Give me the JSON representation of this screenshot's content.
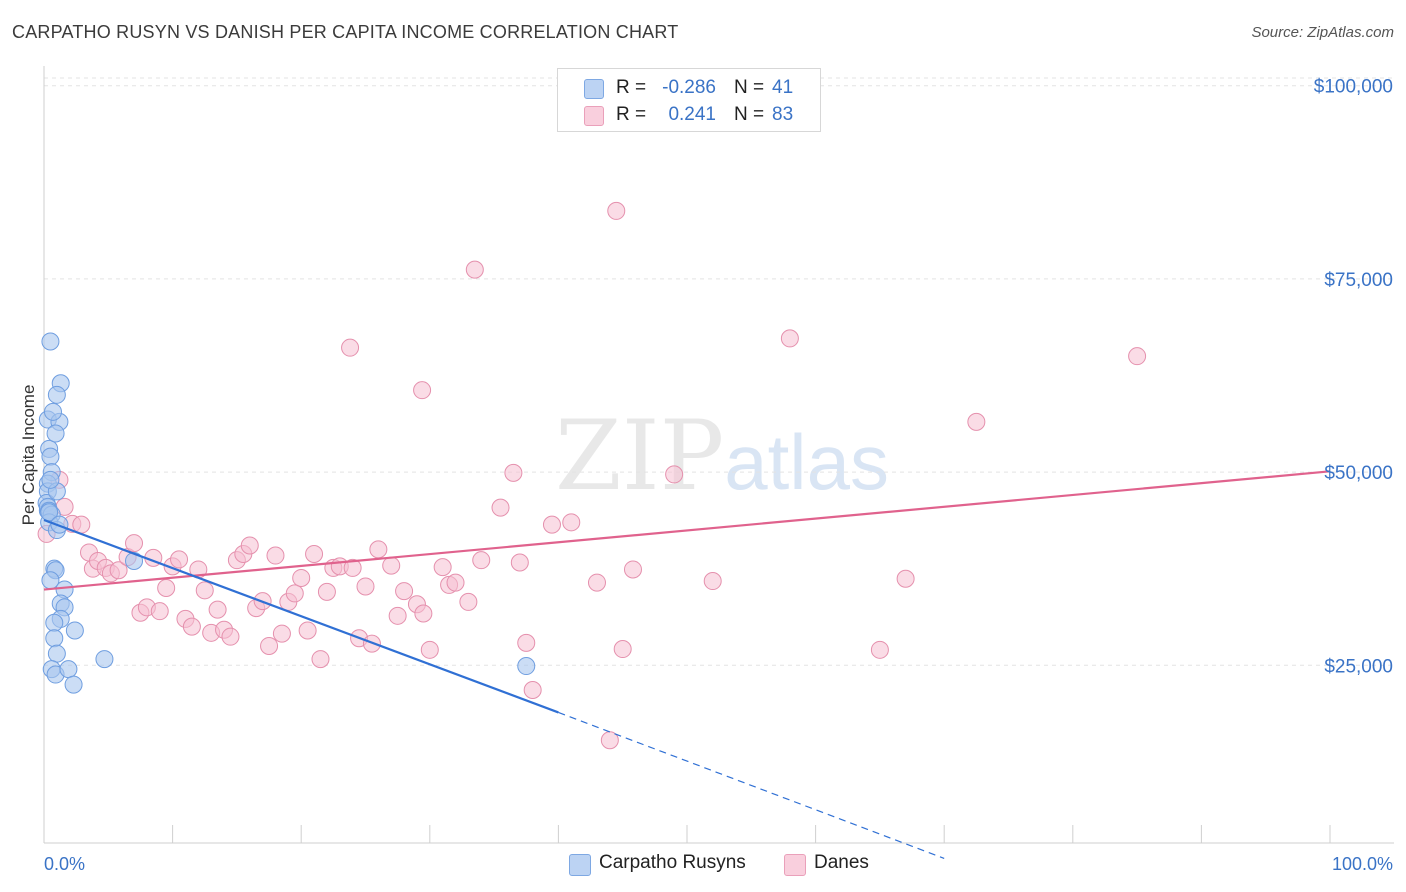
{
  "title": "CARPATHO RUSYN VS DANISH PER CAPITA INCOME CORRELATION CHART",
  "source": "Source: ZipAtlas.com",
  "watermark": {
    "main": "ZIP",
    "sub": "atlas"
  },
  "colors": {
    "blue_fill": "#a9c7ef",
    "blue_stroke": "#6f9ee0",
    "blue_line": "#3070d4",
    "pink_fill": "#f6bfd1",
    "pink_stroke": "#e590ad",
    "pink_line": "#e0628d",
    "tick_text": "#3a73c6",
    "grid": "#e3e3e3"
  },
  "legend": {
    "rows": [
      {
        "r_label": "R =",
        "r_value": "-0.286",
        "n_label": "N =",
        "n_value": "41",
        "color": "#a9c7ef"
      },
      {
        "r_label": "R =",
        "r_value": "0.241",
        "n_label": "N =",
        "n_value": "83",
        "color": "#f6bfd1"
      }
    ]
  },
  "bottom_legend": [
    {
      "label": "Carpatho Rusyns",
      "color": "#a9c7ef"
    },
    {
      "label": "Danes",
      "color": "#f6bfd1"
    }
  ],
  "chart_data": {
    "type": "scatter",
    "title": "CARPATHO RUSYN VS DANISH PER CAPITA INCOME CORRELATION CHART",
    "xlabel": "",
    "ylabel": "Per Capita Income",
    "xlim": [
      0,
      100
    ],
    "ylim": [
      0,
      102000
    ],
    "x_tick_labels": [
      "0.0%",
      "100.0%"
    ],
    "y_ticks": [
      25000,
      50000,
      75000,
      100000
    ],
    "y_tick_labels": [
      "$25,000",
      "$50,000",
      "$75,000",
      "$100,000"
    ],
    "grid": true,
    "legend_position": "top-center",
    "series": [
      {
        "name": "Carpatho Rusyns",
        "points": [
          [
            0.3,
            45000
          ],
          [
            0.5,
            66900
          ],
          [
            0.3,
            56800
          ],
          [
            0.4,
            53000
          ],
          [
            0.5,
            52000
          ],
          [
            0.6,
            50000
          ],
          [
            0.3,
            48500
          ],
          [
            0.3,
            47500
          ],
          [
            0.2,
            46000
          ],
          [
            0.3,
            45500
          ],
          [
            0.4,
            45000
          ],
          [
            0.6,
            44500
          ],
          [
            0.4,
            43500
          ],
          [
            1.0,
            42500
          ],
          [
            1.3,
            61500
          ],
          [
            1.0,
            60000
          ],
          [
            1.2,
            56500
          ],
          [
            0.9,
            55000
          ],
          [
            0.7,
            57800
          ],
          [
            1.0,
            47500
          ],
          [
            0.8,
            37500
          ],
          [
            0.9,
            37300
          ],
          [
            0.5,
            36000
          ],
          [
            1.6,
            34800
          ],
          [
            1.3,
            33000
          ],
          [
            1.6,
            32500
          ],
          [
            1.3,
            31000
          ],
          [
            0.8,
            30500
          ],
          [
            0.8,
            28500
          ],
          [
            1.0,
            26500
          ],
          [
            0.6,
            24500
          ],
          [
            0.9,
            23800
          ],
          [
            1.9,
            24500
          ],
          [
            2.3,
            22500
          ],
          [
            2.4,
            29500
          ],
          [
            4.7,
            25800
          ],
          [
            7.0,
            38500
          ],
          [
            37.5,
            24900
          ],
          [
            0.4,
            44800
          ],
          [
            0.5,
            49000
          ],
          [
            1.2,
            43200
          ]
        ],
        "trend": {
          "x0": 0,
          "y0": 43800,
          "x1": 40,
          "y1": 18900,
          "dashed_to_x": 70,
          "dashed_to_y": 0
        }
      },
      {
        "name": "Danes",
        "points": [
          [
            0.2,
            42000
          ],
          [
            1.2,
            49000
          ],
          [
            1.6,
            45500
          ],
          [
            2.2,
            43300
          ],
          [
            2.9,
            43200
          ],
          [
            3.5,
            39600
          ],
          [
            3.8,
            37500
          ],
          [
            4.2,
            38500
          ],
          [
            4.8,
            37600
          ],
          [
            5.2,
            36900
          ],
          [
            5.8,
            37300
          ],
          [
            6.5,
            39000
          ],
          [
            7.0,
            40800
          ],
          [
            7.5,
            31800
          ],
          [
            8.0,
            32500
          ],
          [
            8.5,
            38900
          ],
          [
            9.0,
            32000
          ],
          [
            9.5,
            35000
          ],
          [
            10.0,
            37800
          ],
          [
            10.5,
            38700
          ],
          [
            11.0,
            31000
          ],
          [
            11.5,
            30000
          ],
          [
            12.0,
            37400
          ],
          [
            12.5,
            34700
          ],
          [
            13.0,
            29200
          ],
          [
            13.5,
            32200
          ],
          [
            14.0,
            29600
          ],
          [
            14.5,
            28700
          ],
          [
            15.0,
            38600
          ],
          [
            15.5,
            39400
          ],
          [
            16.0,
            40500
          ],
          [
            16.5,
            32400
          ],
          [
            17.0,
            33300
          ],
          [
            17.5,
            27500
          ],
          [
            18.0,
            39200
          ],
          [
            18.5,
            29100
          ],
          [
            19.0,
            33200
          ],
          [
            19.5,
            34300
          ],
          [
            20.0,
            36300
          ],
          [
            20.5,
            29500
          ],
          [
            21.0,
            39400
          ],
          [
            21.5,
            25800
          ],
          [
            22.0,
            34500
          ],
          [
            22.5,
            37600
          ],
          [
            23.0,
            37800
          ],
          [
            24.0,
            37600
          ],
          [
            24.5,
            28500
          ],
          [
            25.0,
            35200
          ],
          [
            25.5,
            27800
          ],
          [
            26.0,
            40000
          ],
          [
            27.0,
            37900
          ],
          [
            27.5,
            31400
          ],
          [
            28.0,
            34600
          ],
          [
            29.0,
            32900
          ],
          [
            29.5,
            31700
          ],
          [
            30.0,
            27000
          ],
          [
            31.0,
            37700
          ],
          [
            31.5,
            35400
          ],
          [
            32.0,
            35700
          ],
          [
            33.0,
            33200
          ],
          [
            34.0,
            38600
          ],
          [
            35.5,
            45400
          ],
          [
            36.5,
            49900
          ],
          [
            37.0,
            38300
          ],
          [
            37.5,
            27900
          ],
          [
            38.0,
            21800
          ],
          [
            39.5,
            43200
          ],
          [
            41.0,
            43500
          ],
          [
            43.0,
            35700
          ],
          [
            44.5,
            83800
          ],
          [
            45.0,
            27100
          ],
          [
            49.0,
            49700
          ],
          [
            52.0,
            35900
          ],
          [
            58.0,
            67300
          ],
          [
            65.0,
            27000
          ],
          [
            67.0,
            36200
          ],
          [
            72.5,
            56500
          ],
          [
            85.0,
            65000
          ],
          [
            33.5,
            76200
          ],
          [
            23.8,
            66100
          ],
          [
            29.4,
            60600
          ],
          [
            44.0,
            15300
          ],
          [
            45.8,
            37400
          ]
        ],
        "trend": {
          "x0": 0,
          "y0": 34800,
          "x1": 100,
          "y1": 50100
        }
      }
    ]
  }
}
